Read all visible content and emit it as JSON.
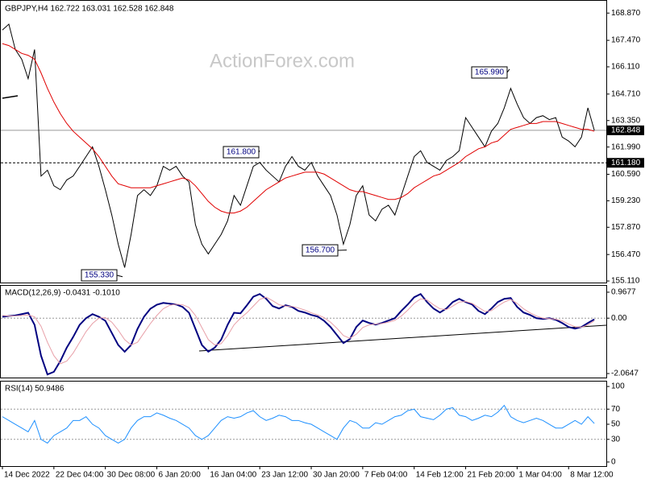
{
  "chart_data": [
    {
      "type": "line",
      "title": "GBPJPY,H4  162.722 163.031 162.528 162.848",
      "watermark": "ActionForex.com",
      "categories": [
        "14 Dec 2022",
        null,
        null,
        null,
        null,
        null,
        null,
        null,
        "22 Dec 04:00",
        null,
        null,
        null,
        null,
        null,
        null,
        null,
        "30 Dec 08:00",
        null,
        null,
        null,
        null,
        null,
        null,
        null,
        "6 Jan 20:00",
        null,
        null,
        null,
        null,
        null,
        null,
        null,
        "16 Jan 04:00",
        null,
        null,
        null,
        null,
        null,
        null,
        null,
        "23 Jan 12:00",
        null,
        null,
        null,
        null,
        null,
        null,
        null,
        "30 Jan 20:00",
        null,
        null,
        null,
        null,
        null,
        null,
        null,
        "7 Feb 04:00",
        null,
        null,
        null,
        null,
        null,
        null,
        null,
        "14 Feb 12:00",
        null,
        null,
        null,
        null,
        null,
        null,
        null,
        "21 Feb 20:00",
        null,
        null,
        null,
        null,
        null,
        null,
        null,
        "1 Mar 04:00",
        null,
        null,
        null,
        null,
        null,
        null,
        null,
        "8 Mar 12:00",
        null,
        null,
        null,
        null
      ],
      "series": [
        {
          "color": "#000000",
          "values": [
            168.0,
            168.3,
            167.0,
            166.5,
            165.5,
            167.0,
            160.5,
            160.8,
            160.0,
            159.8,
            160.3,
            160.5,
            161.0,
            161.5,
            162.0,
            161.0,
            159.8,
            158.5,
            157.0,
            155.8,
            157.5,
            159.5,
            159.8,
            159.5,
            160.0,
            161.0,
            160.8,
            161.0,
            160.5,
            160.2,
            158.0,
            157.0,
            156.5,
            157.0,
            157.5,
            158.2,
            159.5,
            159.0,
            160.0,
            161.0,
            161.2,
            160.8,
            160.5,
            160.2,
            161.0,
            161.5,
            161.0,
            160.8,
            161.2,
            160.5,
            160.0,
            159.5,
            158.5,
            157.0,
            158.0,
            159.5,
            160.0,
            158.5,
            158.2,
            158.8,
            159.0,
            158.5,
            159.5,
            160.5,
            161.5,
            161.8,
            161.2,
            161.0,
            160.8,
            161.3,
            161.5,
            161.8,
            163.5,
            163.0,
            162.5,
            162.0,
            162.8,
            163.2,
            164.0,
            165.0,
            164.2,
            163.5,
            163.2,
            163.5,
            163.6,
            163.4,
            163.5,
            162.5,
            162.3,
            162.0,
            162.5,
            164.0,
            162.848
          ]
        },
        {
          "color": "#e00000",
          "values": [
            167.3,
            167.2,
            167.0,
            166.8,
            166.7,
            166.5,
            165.8,
            165.0,
            164.3,
            163.7,
            163.2,
            162.8,
            162.5,
            162.2,
            161.9,
            161.5,
            161.0,
            160.5,
            160.1,
            160.0,
            159.9,
            159.9,
            159.9,
            159.9,
            160.0,
            160.1,
            160.2,
            160.3,
            160.4,
            160.3,
            160.0,
            159.6,
            159.2,
            158.9,
            158.7,
            158.6,
            158.6,
            158.7,
            158.9,
            159.2,
            159.5,
            159.8,
            160.0,
            160.2,
            160.4,
            160.5,
            160.6,
            160.7,
            160.7,
            160.7,
            160.6,
            160.4,
            160.2,
            160.0,
            159.8,
            159.7,
            159.7,
            159.6,
            159.5,
            159.4,
            159.3,
            159.3,
            159.4,
            159.6,
            159.9,
            160.1,
            160.3,
            160.5,
            160.6,
            160.8,
            161.0,
            161.2,
            161.5,
            161.7,
            161.9,
            162.0,
            162.2,
            162.3,
            162.6,
            162.9,
            163.0,
            163.1,
            163.2,
            163.2,
            163.3,
            163.3,
            163.3,
            163.2,
            163.1,
            163.0,
            162.9,
            162.9,
            162.8
          ]
        }
      ],
      "ylim": [
        155.03,
        169.5
      ],
      "yticks": [
        {
          "value": 168.87,
          "label": "168.870"
        },
        {
          "value": 167.47,
          "label": "167.470"
        },
        {
          "value": 166.11,
          "label": "166.110"
        },
        {
          "value": 164.71,
          "label": "164.710"
        },
        {
          "value": 163.35,
          "label": "163.350"
        },
        {
          "value": 161.99,
          "label": "161.990"
        },
        {
          "value": 160.59,
          "label": "160.590"
        },
        {
          "value": 159.23,
          "label": "159.230"
        },
        {
          "value": 157.87,
          "label": "157.870"
        },
        {
          "value": 156.47,
          "label": "156.470"
        },
        {
          "value": 155.11,
          "label": "155.110"
        }
      ],
      "hlines": [
        {
          "value": 162.848,
          "label": "162.848",
          "style": "solid"
        },
        {
          "value": 161.18,
          "label": "161.180",
          "style": "dashed"
        }
      ],
      "annotations": [
        {
          "value": 155.33,
          "label": "155.330"
        },
        {
          "value": 161.8,
          "label": "161.800"
        },
        {
          "value": 165.99,
          "label": "165.990"
        },
        {
          "value": 156.7,
          "label": "156.700"
        }
      ]
    },
    {
      "type": "line",
      "title": "MACD(12,26,9) -0.0431 -0.1010",
      "series": [
        {
          "color": "#000080",
          "values": [
            0.05,
            0.08,
            0.1,
            0.15,
            0.2,
            -0.25,
            -1.4,
            -2.1,
            -2.0,
            -1.6,
            -1.1,
            -0.7,
            -0.25,
            0.0,
            0.15,
            0.05,
            -0.1,
            -0.55,
            -1.0,
            -1.25,
            -1.0,
            -0.4,
            0.05,
            0.35,
            0.5,
            0.57,
            0.54,
            0.51,
            0.42,
            0.2,
            -0.4,
            -1.0,
            -1.25,
            -1.1,
            -0.8,
            -0.25,
            0.2,
            0.18,
            0.48,
            0.8,
            0.9,
            0.72,
            0.45,
            0.36,
            0.48,
            0.42,
            0.27,
            0.21,
            0.12,
            0.06,
            -0.1,
            -0.33,
            -0.63,
            -0.93,
            -0.78,
            -0.33,
            -0.09,
            -0.18,
            -0.24,
            -0.18,
            -0.09,
            0.0,
            0.27,
            0.51,
            0.78,
            0.9,
            0.6,
            0.36,
            0.21,
            0.36,
            0.6,
            0.72,
            0.6,
            0.51,
            0.27,
            0.15,
            0.36,
            0.6,
            0.72,
            0.75,
            0.42,
            0.21,
            0.12,
            0.0,
            -0.03,
            0.0,
            -0.06,
            -0.18,
            -0.33,
            -0.39,
            -0.33,
            -0.18,
            -0.0431
          ]
        },
        {
          "color": "#e8a0a8",
          "values": [
            0.1,
            0.08,
            0.08,
            0.1,
            0.12,
            0.05,
            -0.3,
            -0.9,
            -1.4,
            -1.7,
            -1.6,
            -1.3,
            -0.9,
            -0.5,
            -0.2,
            0.0,
            0.02,
            -0.15,
            -0.45,
            -0.8,
            -1.0,
            -0.9,
            -0.55,
            -0.2,
            0.1,
            0.35,
            0.48,
            0.52,
            0.5,
            0.4,
            0.1,
            -0.35,
            -0.8,
            -1.0,
            -0.95,
            -0.65,
            -0.25,
            0.0,
            0.2,
            0.45,
            0.7,
            0.78,
            0.65,
            0.5,
            0.45,
            0.44,
            0.38,
            0.3,
            0.2,
            0.12,
            0.02,
            -0.15,
            -0.38,
            -0.65,
            -0.75,
            -0.6,
            -0.35,
            -0.25,
            -0.22,
            -0.2,
            -0.15,
            -0.08,
            0.08,
            0.3,
            0.55,
            0.72,
            0.68,
            0.5,
            0.35,
            0.32,
            0.45,
            0.6,
            0.62,
            0.55,
            0.4,
            0.25,
            0.28,
            0.45,
            0.6,
            0.7,
            0.55,
            0.35,
            0.2,
            0.08,
            0.0,
            -0.02,
            -0.04,
            -0.1,
            -0.22,
            -0.32,
            -0.34,
            -0.25,
            -0.101
          ]
        }
      ],
      "ylim": [
        -2.214,
        1.207
      ],
      "yticks": [
        0.9677,
        {
          "value": 0,
          "label": "0.00"
        },
        -2.0647
      ],
      "levels": [
        0
      ]
    },
    {
      "type": "line",
      "title": "RSI(14) 50.9486",
      "series": [
        {
          "color": "#1e90ff",
          "values": [
            60,
            55,
            50,
            45,
            40,
            55,
            30,
            25,
            35,
            40,
            45,
            55,
            55,
            60,
            50,
            45,
            35,
            30,
            25,
            30,
            45,
            55,
            60,
            60,
            65,
            62,
            58,
            55,
            50,
            45,
            35,
            30,
            35,
            45,
            55,
            60,
            58,
            60,
            65,
            68,
            60,
            55,
            58,
            62,
            60,
            55,
            55,
            52,
            50,
            45,
            40,
            35,
            30,
            45,
            55,
            52,
            45,
            45,
            52,
            50,
            55,
            60,
            62,
            68,
            70,
            60,
            58,
            56,
            62,
            70,
            72,
            62,
            60,
            55,
            58,
            62,
            60,
            66,
            75,
            60,
            55,
            52,
            55,
            58,
            55,
            50,
            45,
            45,
            50,
            55,
            50,
            60,
            51
          ]
        }
      ],
      "ylim": [
        -5.4,
        106.5
      ],
      "yticks": [
        100,
        70,
        50,
        30,
        0
      ],
      "levels": [
        70,
        30
      ]
    }
  ]
}
